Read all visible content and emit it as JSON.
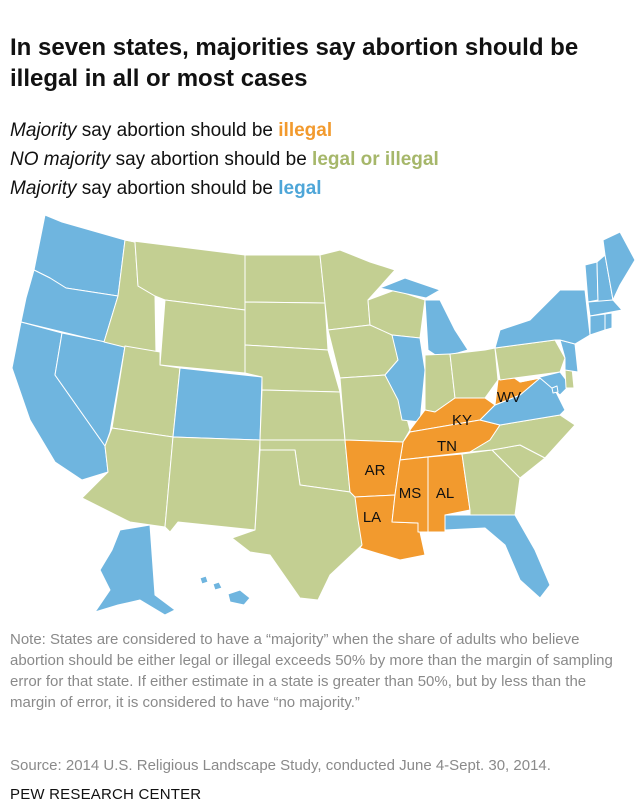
{
  "title": "In seven states, majorities say abortion should be illegal in all or most cases",
  "legend": [
    {
      "prefix": "Majority",
      "middle": " say abortion should be ",
      "keyword": "illegal",
      "color": "#f29a2e"
    },
    {
      "prefix": "NO majority",
      "middle": " say abortion should be ",
      "keyword": "legal or illegal",
      "color": "#a6b76a"
    },
    {
      "prefix": "Majority",
      "middle": " say abortion should be ",
      "keyword": "legal",
      "color": "#4ea6d8"
    }
  ],
  "colors": {
    "illegal": "#f29a2e",
    "no_majority": "#c3cf92",
    "legal": "#6fb5df",
    "border": "#ffffff"
  },
  "map": {
    "state_labels": {
      "AR": "AR",
      "LA": "LA",
      "MS": "MS",
      "AL": "AL",
      "TN": "TN",
      "KY": "KY",
      "WV": "WV"
    },
    "categories": {
      "illegal": [
        "AR",
        "LA",
        "MS",
        "AL",
        "TN",
        "KY",
        "WV"
      ],
      "legal": [
        "WA",
        "OR",
        "CA",
        "NV",
        "CO",
        "IL",
        "MI",
        "NY",
        "VT",
        "NH",
        "ME",
        "MA",
        "CT",
        "RI",
        "NJ",
        "MD",
        "DC",
        "VA",
        "FL",
        "AK",
        "HI"
      ],
      "no_majority": [
        "ID",
        "MT",
        "WY",
        "UT",
        "AZ",
        "NM",
        "ND",
        "SD",
        "NE",
        "KS",
        "OK",
        "TX",
        "MN",
        "IA",
        "MO",
        "WI",
        "IN",
        "OH",
        "PA",
        "DE",
        "NC",
        "SC",
        "GA"
      ]
    }
  },
  "note": "Note: States are considered to have a “majority” when the share of adults who believe abortion should be either legal or illegal exceeds 50% by more than the margin of sampling error for that state. If either estimate in a state is greater than 50%, but by less than the margin of error, it is considered to have “no majority.”",
  "source": "Source: 2014 U.S. Religious Landscape Study, conducted June 4-Sept. 30, 2014.",
  "footer": "PEW RESEARCH CENTER"
}
